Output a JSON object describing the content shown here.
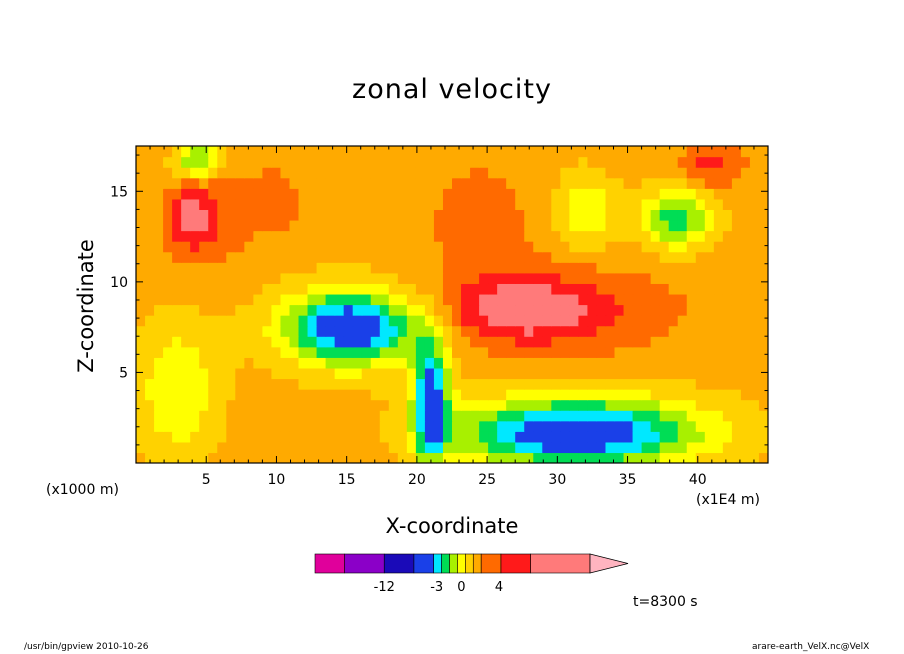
{
  "chart_data": {
    "type": "heatmap",
    "title": "zonal velocity",
    "xlabel": "X-coordinate",
    "ylabel": "Z-coordinate",
    "x_unit": "(x1E4 m)",
    "y_unit": "(x1000 m)",
    "xlim": [
      0,
      45
    ],
    "ylim": [
      0,
      17.5
    ],
    "x_ticks": [
      5,
      10,
      15,
      20,
      25,
      30,
      35,
      40
    ],
    "y_ticks": [
      5,
      10,
      15
    ],
    "time_label": "t=8300 s",
    "colorbar": {
      "colors": [
        "#e0009b",
        "#8b00c8",
        "#1a0ab8",
        "#1a40e8",
        "#00e8ff",
        "#00dd55",
        "#a8f000",
        "#ffff00",
        "#ffd200",
        "#ffaa00",
        "#ff6a00",
        "#ff1a1a",
        "#ff7a7a",
        "#ffb4c0"
      ],
      "tick_labels": [
        "-12",
        "-3",
        "0",
        "4"
      ]
    },
    "contour_regions": [
      {
        "level": 4,
        "x": [
          3.0,
          8.0
        ],
        "z": [
          11.0,
          17.0
        ]
      },
      {
        "level": 6,
        "x": [
          2.5,
          5.0
        ],
        "z": [
          12.0,
          15.0
        ]
      },
      {
        "level": 3,
        "x": [
          8.0,
          12.0
        ],
        "z": [
          12.5,
          16.5
        ]
      },
      {
        "level": 3,
        "x": [
          20.0,
          29.0
        ],
        "z": [
          9.0,
          17.5
        ]
      },
      {
        "level": 4,
        "x": [
          21.0,
          40.0
        ],
        "z": [
          6.0,
          11.0
        ]
      },
      {
        "level": 6,
        "x": [
          22.0,
          33.0
        ],
        "z": [
          7.0,
          10.0
        ]
      },
      {
        "level": 5,
        "x": [
          39.0,
          43.0
        ],
        "z": [
          15.5,
          17.5
        ]
      },
      {
        "level": -6,
        "x": [
          3.0,
          6.0
        ],
        "z": [
          16.0,
          17.5
        ]
      },
      {
        "level": -4,
        "x": [
          9.0,
          21.0
        ],
        "z": [
          5.0,
          10.0
        ]
      },
      {
        "level": -6,
        "x": [
          11.0,
          20.0
        ],
        "z": [
          6.0,
          9.0
        ]
      },
      {
        "level": -4,
        "x": [
          21.0,
          43.0
        ],
        "z": [
          0.0,
          4.0
        ]
      },
      {
        "level": -6,
        "x": [
          22.0,
          40.0
        ],
        "z": [
          0.0,
          3.0
        ]
      },
      {
        "level": -10,
        "x": [
          20.0,
          22.0
        ],
        "z": [
          0.0,
          7.0
        ]
      },
      {
        "level": -6,
        "x": [
          36.0,
          41.0
        ],
        "z": [
          12.0,
          15.0
        ]
      },
      {
        "level": -3,
        "x": [
          30.0,
          34.0
        ],
        "z": [
          12.0,
          16.0
        ]
      },
      {
        "level": -3,
        "x": [
          0.0,
          6.0
        ],
        "z": [
          0.0,
          8.0
        ]
      }
    ]
  },
  "footer": {
    "left": "/usr/bin/gpview  2010-10-26",
    "right": "arare-earth_VelX.nc@VelX"
  }
}
